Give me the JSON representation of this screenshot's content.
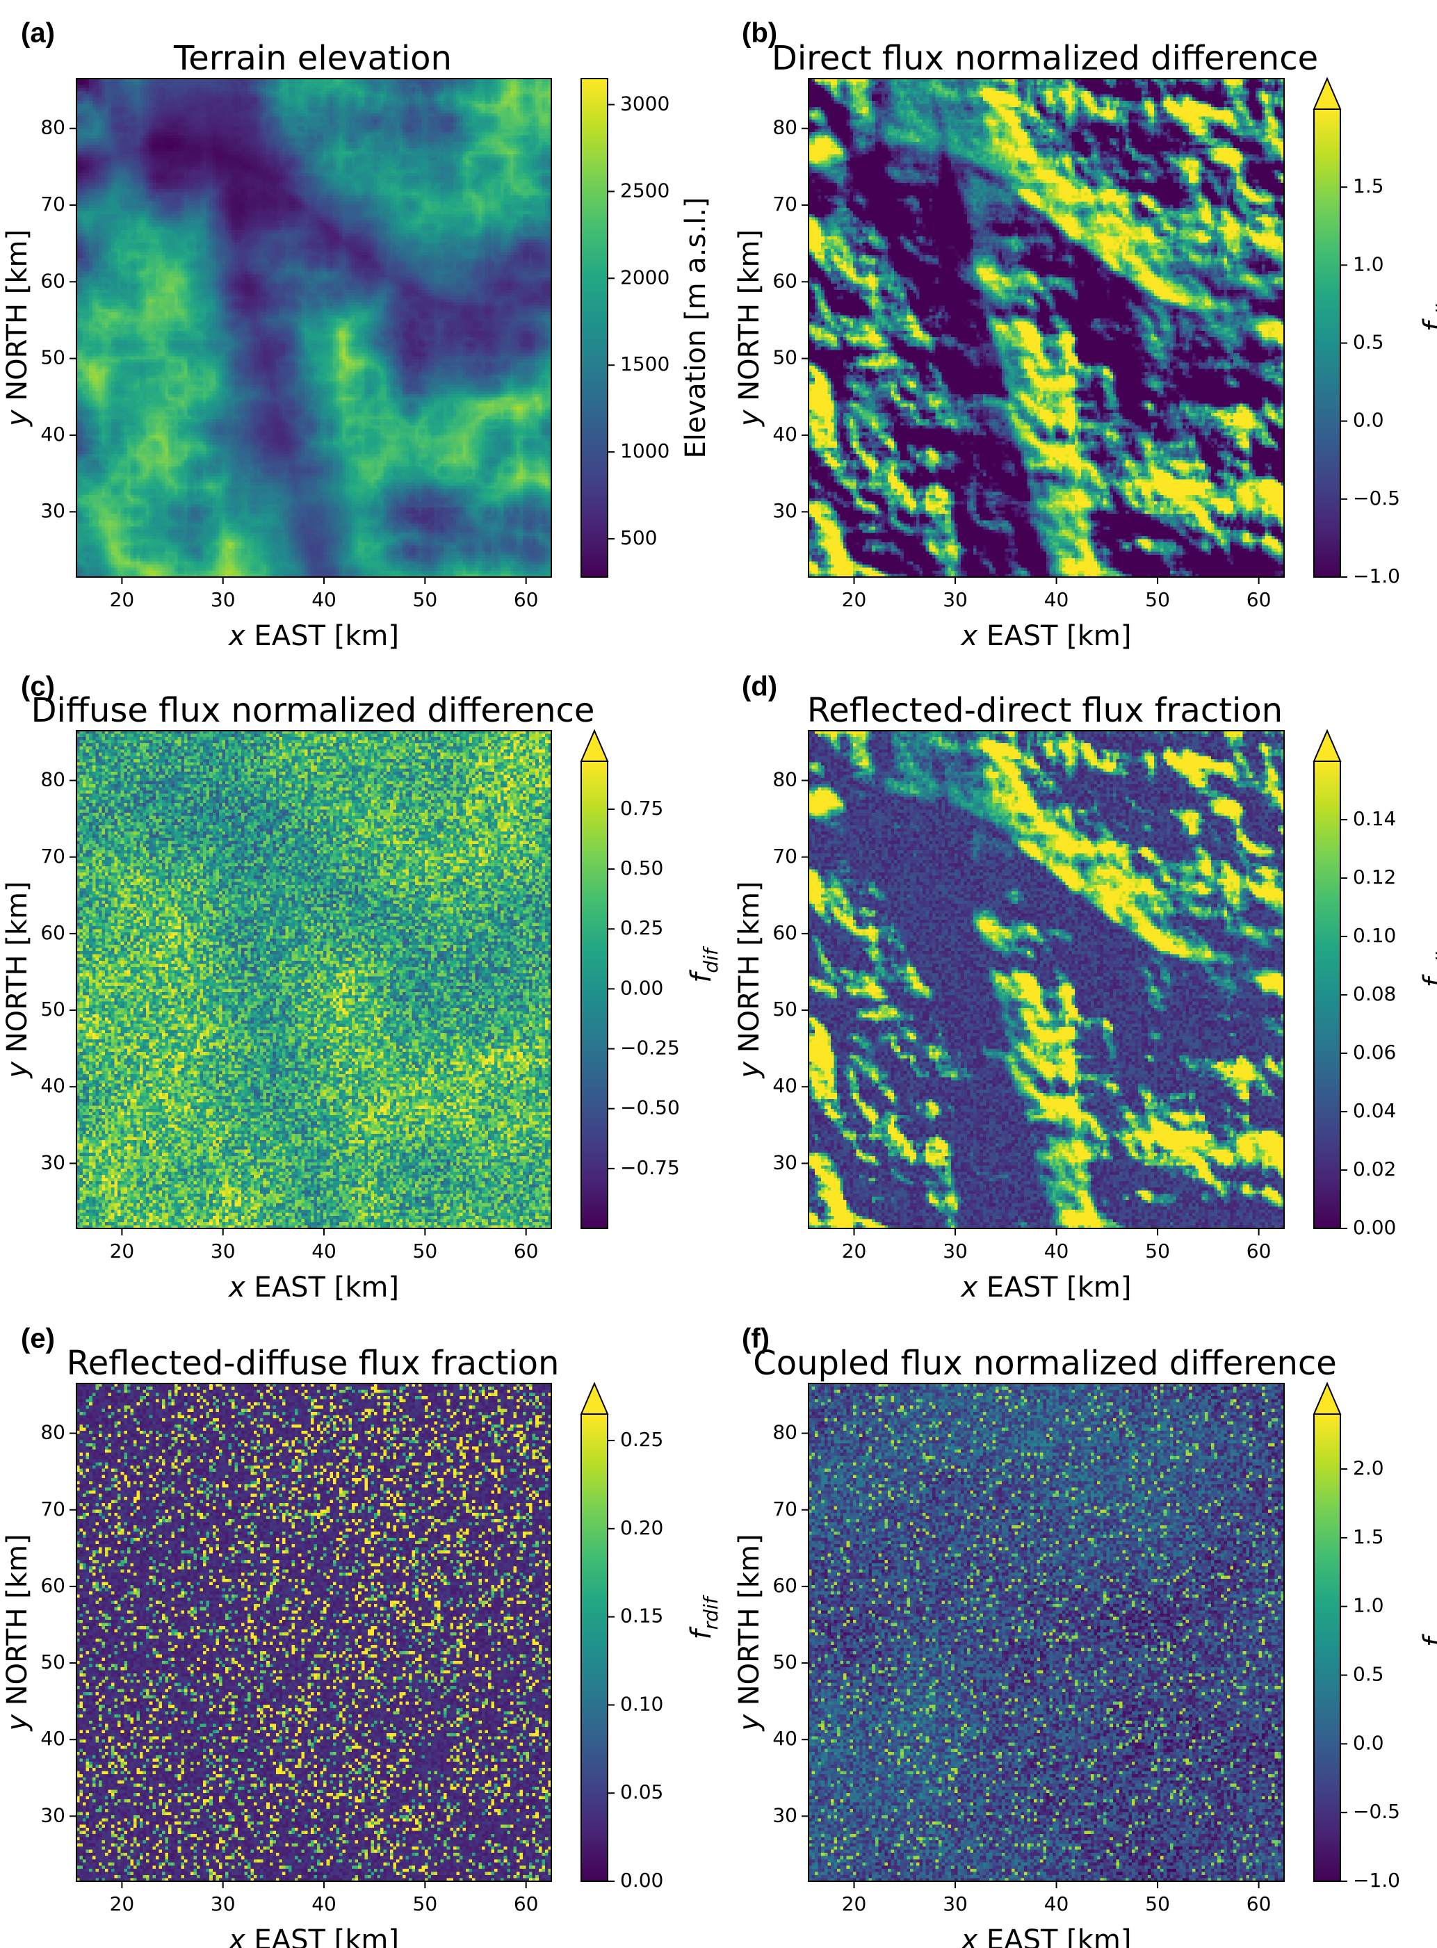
{
  "chart_data": [
    {
      "type": "heatmap",
      "panel_label": "(a)",
      "title": "Terrain elevation",
      "xlabel_var": "x",
      "xlabel_unit": " EAST [km]",
      "ylabel_var": "y",
      "ylabel_unit": " NORTH [km]",
      "xlim": [
        15.5,
        62.5
      ],
      "ylim": [
        21.5,
        86.5
      ],
      "xticks": [
        20,
        30,
        40,
        50,
        60
      ],
      "yticks": [
        30,
        40,
        50,
        60,
        70,
        80
      ],
      "colorbar": {
        "label": "Elevation [m a.s.l.]",
        "label_base": "",
        "label_sub": "",
        "min": 280,
        "max": 3150,
        "ticks": [
          500,
          1000,
          1500,
          2000,
          2500,
          3000
        ],
        "ticklabels": [
          "500",
          "1000",
          "1500",
          "2000",
          "2500",
          "3000"
        ],
        "extend_max": false
      },
      "colormap": "viridis",
      "pattern": "elevation"
    },
    {
      "type": "heatmap",
      "panel_label": "(b)",
      "title": "Direct flux normalized difference",
      "xlabel_var": "x",
      "xlabel_unit": " EAST [km]",
      "ylabel_var": "y",
      "ylabel_unit": " NORTH [km]",
      "xlim": [
        15.5,
        62.5
      ],
      "ylim": [
        21.5,
        86.5
      ],
      "xticks": [
        20,
        30,
        40,
        50,
        60
      ],
      "yticks": [
        30,
        40,
        50,
        60,
        70,
        80
      ],
      "colorbar": {
        "label": "",
        "label_base": "f",
        "label_sub": "dir",
        "min": -1.0,
        "max": 2.0,
        "ticks": [
          -1.0,
          -0.5,
          0.0,
          0.5,
          1.0,
          1.5
        ],
        "ticklabels": [
          "−1.0",
          "−0.5",
          "0.0",
          "0.5",
          "1.0",
          "1.5"
        ],
        "extend_max": true
      },
      "colormap": "viridis",
      "pattern": "direct"
    },
    {
      "type": "heatmap",
      "panel_label": "(c)",
      "title": "Diffuse flux normalized difference",
      "xlabel_var": "x",
      "xlabel_unit": " EAST [km]",
      "ylabel_var": "y",
      "ylabel_unit": " NORTH [km]",
      "xlim": [
        15.5,
        62.5
      ],
      "ylim": [
        21.5,
        86.5
      ],
      "xticks": [
        20,
        30,
        40,
        50,
        60
      ],
      "yticks": [
        30,
        40,
        50,
        60,
        70,
        80
      ],
      "colorbar": {
        "label": "",
        "label_base": "f",
        "label_sub": "dif",
        "min": -1.0,
        "max": 0.95,
        "ticks": [
          -0.75,
          -0.5,
          -0.25,
          0.0,
          0.25,
          0.5,
          0.75
        ],
        "ticklabels": [
          "−0.75",
          "−0.50",
          "−0.25",
          "0.00",
          "0.25",
          "0.50",
          "0.75"
        ],
        "extend_max": true
      },
      "colormap": "viridis",
      "pattern": "diffuse"
    },
    {
      "type": "heatmap",
      "panel_label": "(d)",
      "title": "Reflected-direct flux fraction",
      "xlabel_var": "x",
      "xlabel_unit": " EAST [km]",
      "ylabel_var": "y",
      "ylabel_unit": " NORTH [km]",
      "xlim": [
        15.5,
        62.5
      ],
      "ylim": [
        21.5,
        86.5
      ],
      "xticks": [
        20,
        30,
        40,
        50,
        60
      ],
      "yticks": [
        30,
        40,
        50,
        60,
        70,
        80
      ],
      "colorbar": {
        "label": "",
        "label_base": "f",
        "label_sub": "rdir",
        "min": 0.0,
        "max": 0.16,
        "ticks": [
          0.0,
          0.02,
          0.04,
          0.06,
          0.08,
          0.1,
          0.12,
          0.14
        ],
        "ticklabels": [
          "0.00",
          "0.02",
          "0.04",
          "0.06",
          "0.08",
          "0.10",
          "0.12",
          "0.14"
        ],
        "extend_max": true
      },
      "colormap": "viridis",
      "pattern": "rdir"
    },
    {
      "type": "heatmap",
      "panel_label": "(e)",
      "title": "Reflected-diffuse flux fraction",
      "xlabel_var": "x",
      "xlabel_unit": " EAST [km]",
      "ylabel_var": "y",
      "ylabel_unit": " NORTH [km]",
      "xlim": [
        15.5,
        62.5
      ],
      "ylim": [
        21.5,
        86.5
      ],
      "xticks": [
        20,
        30,
        40,
        50,
        60
      ],
      "yticks": [
        30,
        40,
        50,
        60,
        70,
        80
      ],
      "colorbar": {
        "label": "",
        "label_base": "f",
        "label_sub": "rdif",
        "min": 0.0,
        "max": 0.265,
        "ticks": [
          0.0,
          0.05,
          0.1,
          0.15,
          0.2,
          0.25
        ],
        "ticklabels": [
          "0.00",
          "0.05",
          "0.10",
          "0.15",
          "0.20",
          "0.25"
        ],
        "extend_max": true
      },
      "colormap": "viridis",
      "pattern": "rdif"
    },
    {
      "type": "heatmap",
      "panel_label": "(f)",
      "title": "Coupled flux normalized difference",
      "xlabel_var": "x",
      "xlabel_unit": " EAST [km]",
      "ylabel_var": "y",
      "ylabel_unit": " NORTH [km]",
      "xlim": [
        15.5,
        62.5
      ],
      "ylim": [
        21.5,
        86.5
      ],
      "xticks": [
        20,
        30,
        40,
        50,
        60
      ],
      "yticks": [
        30,
        40,
        50,
        60,
        70,
        80
      ],
      "colorbar": {
        "label": "",
        "label_base": "f",
        "label_sub": "coup",
        "min": -1.0,
        "max": 2.4,
        "ticks": [
          -1.0,
          -0.5,
          0.0,
          0.5,
          1.0,
          1.5,
          2.0
        ],
        "ticklabels": [
          "−1.0",
          "−0.5",
          "0.0",
          "0.5",
          "1.0",
          "1.5",
          "2.0"
        ],
        "extend_max": true
      },
      "colormap": "viridis",
      "pattern": "coupled"
    }
  ]
}
